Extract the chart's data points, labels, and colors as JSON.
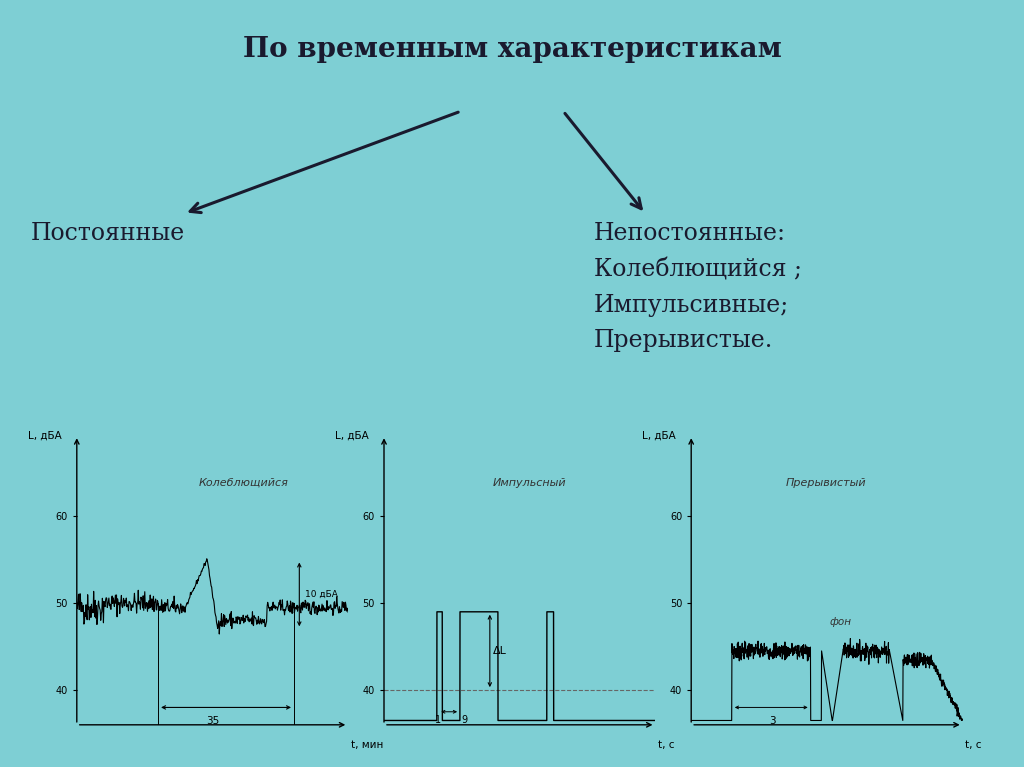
{
  "bg_color": "#7ecfd4",
  "title": "По временным характеристикам",
  "left_label": "Постоянные",
  "right_label": "Непостоянные:\nКолеблющийся ;\nИмпульсивные;\nПрерывистые.",
  "graph1_title": "Колеблющийся",
  "graph2_title": "Импульсный",
  "graph3_title": "Прерывистый",
  "xlabel1": "t, мин",
  "xlabel2": "t, с",
  "xlabel3": "t, с",
  "ylabel": "L, дБА",
  "yticks": [
    40,
    50,
    60
  ],
  "title_fontsize": 20,
  "label_fontsize": 17,
  "axis_fontsize": 8,
  "panel_bg": "#f0eeeb"
}
